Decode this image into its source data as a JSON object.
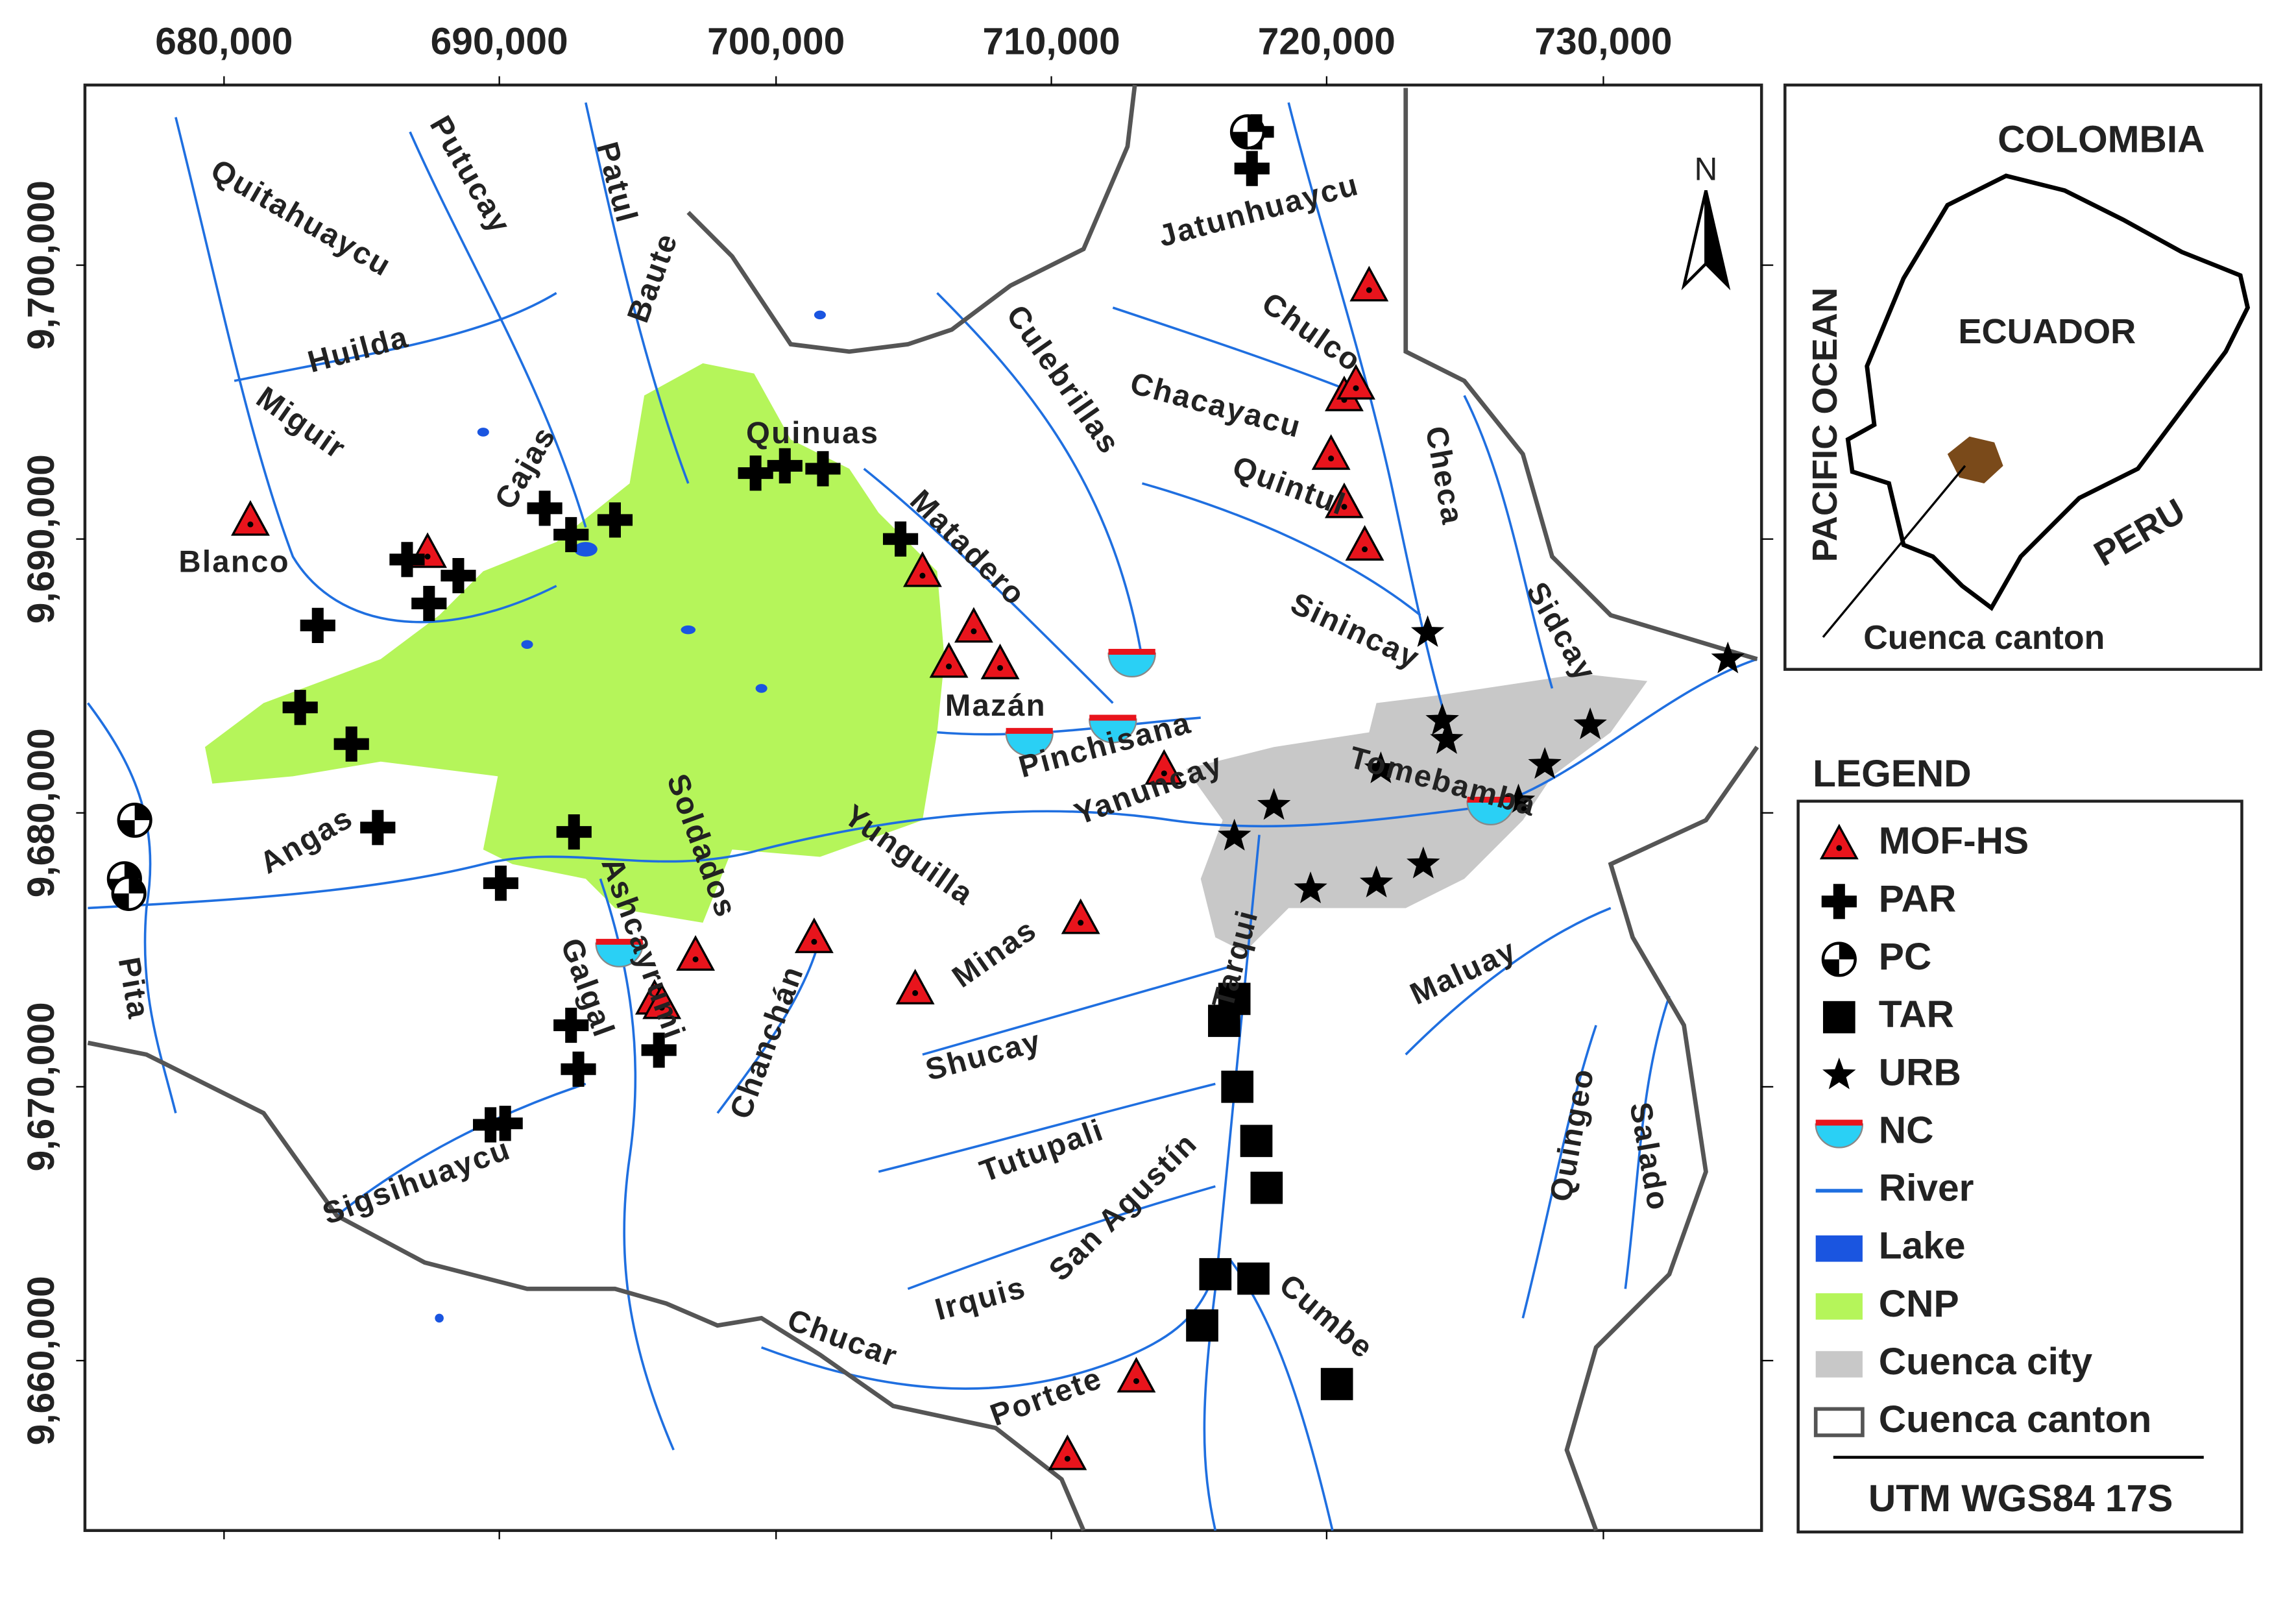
{
  "axes": {
    "x_labels": [
      "680,000",
      "690,000",
      "700,000",
      "710,000",
      "720,000",
      "730,000"
    ],
    "y_labels": [
      "9,700,000",
      "9,690,000",
      "9,680,000",
      "9,670,000",
      "9,660,000"
    ]
  },
  "north": "N",
  "map_labels": [
    "Quitahuaycu",
    "Putucay",
    "Patul",
    "Baute",
    "Huilda",
    "Miguir",
    "Cajas",
    "Blanco",
    "Quinuas",
    "Matadero",
    "Mazán",
    "Pinchisana",
    "Culebrillas",
    "Jatunhuaycu",
    "Chulco",
    "Chacayacu",
    "Quintul",
    "Checa",
    "Sinincay",
    "Sidcay",
    "Tomebamba",
    "Yanuncay",
    "Tarqui",
    "Yunguilla",
    "Minas",
    "Shucay",
    "Tutupali",
    "San Agustín",
    "Irquis",
    "Chucar",
    "Portete",
    "Cumbe",
    "Maluay",
    "Quingeo",
    "Salado",
    "Soldados",
    "Ashcayrumi",
    "Galgal",
    "Chanchán",
    "Sigsihuaycu",
    "Angas",
    "Pita"
  ],
  "inset": {
    "labels": [
      "COLOMBIA",
      "PACIFIC OCEAN",
      "ECUADOR",
      "PERU",
      "Cuenca canton"
    ]
  },
  "legend": {
    "title": "LEGEND",
    "items": [
      "MOF-HS",
      "PAR",
      "PC",
      "TAR",
      "URB",
      "NC",
      "River",
      "Lake",
      "CNP",
      "Cuenca city",
      "Cuenca canton"
    ],
    "note": "UTM WGS84 17S"
  }
}
